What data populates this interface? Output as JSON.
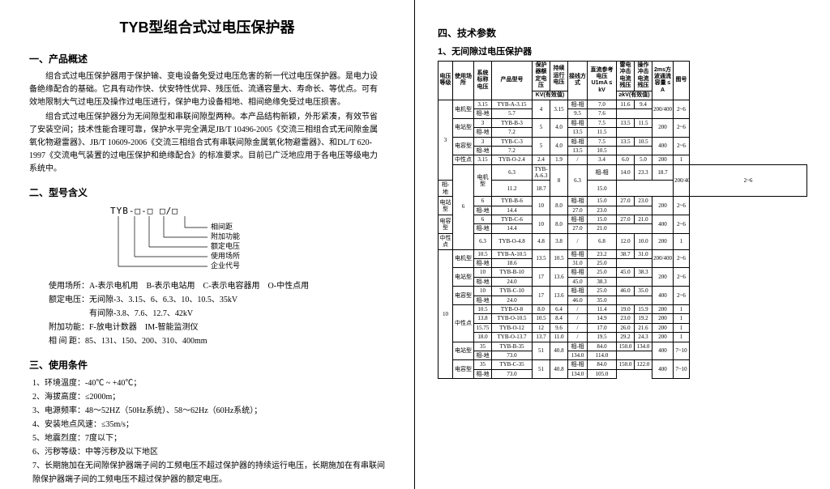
{
  "title": "TYB型组合式过电压保护器",
  "sections": {
    "s1": {
      "heading": "一、产品概述",
      "p1": "组合式过电压保护器用于保护输、变电设备免受过电压危害的新一代过电压保护器。是电力设备绝缘配合的基础。它具有动作快、伏安特性优异、残压低、流通容量大、寿命长、等优点。可有效地限制大气过电压及操作过电压进行，保护电力设备相地、相间绝缘免受过电压损害。",
      "p2": "组合式过电压保护器分为无间隙型和串联间隙型两种。本产品结构新颖，外形紧凑，有效节省了安装空间；技术性能合理可靠，保护水平完全满足JB/T 10496-2005《交流三相组合式无间隙金属氧化物避雷器》、JB/T 10609-2006《交流三相组合式有串联间隙金属氧化物避雷器》、和DL/T 620-1997《交流电气装置的过电压保护和绝缘配合》的标准要求。目前已广泛地应用于各电压等级电力系统中。"
    },
    "s2": {
      "heading": "二、型号含义",
      "model_code": "TYB-□-□ □/□",
      "labels": [
        "相间距",
        "附加功能",
        "额定电压",
        "使用场所",
        "企业代号"
      ],
      "usage": [
        "使用场所：A-表示电机用　B-表示电站用　C-表示电容器用　O-中性点用",
        "额定电压：无间隙-3、3.15、6、6.3、10、10.5、35kV",
        "　　　　　有间隙-3.8、7.6、12.7、42kV",
        "附加功能：F-放电计数器　IM-智能监测仪",
        "相 间 距：85、131、150、200、310、400mm"
      ]
    },
    "s3": {
      "heading": "三、使用条件",
      "items": [
        "1、环境温度：-40℃ ~ +40℃；",
        "2、海拔高度：≤2000m；",
        "3、电源频率：48～52HZ（50Hz系统）、58～62Hz（60Hz系统）；",
        "4、安装地点风速：≤35m/s；",
        "5、地震烈度：7度以下；",
        "6、污秽等级：中等污秽及以下地区",
        "7、长期施加在无间隙保护器端子间的工频电压不超过保护器的持续运行电压，长期施加在有串联间隙保护器端子间的工频电压不超过保护器的额定电压。"
      ]
    },
    "s4": {
      "heading": "四、技术参数",
      "sub": "1、无间隙过电压保护器"
    }
  },
  "table": {
    "headers": {
      "h1": "电压等级",
      "h2": "使用场所",
      "h3": "系统标称电压",
      "h4": "产品型号",
      "h5": "保护器额定电压",
      "h6": "持续运行电压",
      "h7": "接线方式",
      "h8": "直流参考电压U1mA ≤ kV",
      "h9": "雷电冲击电流残压",
      "h10": "操作冲击电流残压",
      "h11": "2ms方波通流容量 ≤ A",
      "h12": "图号",
      "sub_kv": "KV(有效值)",
      "sub_gkv": "≥kV(有效值)"
    },
    "rows": [
      {
        "lvl": "3",
        "lvlspan": 8,
        "use": "电机型",
        "usespan": 2,
        "sys": "3.15",
        "model": "TYB-A-3.15",
        "prot": "4",
        "protspan": 2,
        "cont": "3.15",
        "contspan": 2,
        "wire": "相-相",
        "dc": "7.0",
        "limp": "11.6",
        "oimp": "9.4",
        "cap": "200/400",
        "capspan": 2,
        "fig": "2~6",
        "figspan": 2
      },
      {
        "wire": "相-地",
        "dc": "5.7",
        "limp": "9.5",
        "oimp": "7.6"
      },
      {
        "use": "电站型",
        "usespan": 2,
        "sys": "3",
        "model": "TYB-B-3",
        "prot": "5",
        "protspan": 2,
        "cont": "4.0",
        "contspan": 2,
        "wire": "相-相",
        "dc": "7.5",
        "limp": "13.5",
        "oimp": "11.5",
        "cap": "200",
        "capspan": 2,
        "fig": "2~6",
        "figspan": 2
      },
      {
        "wire": "相-地",
        "dc": "7.2",
        "limp": "13.5",
        "oimp": "11.5"
      },
      {
        "use": "电容型",
        "usespan": 2,
        "sys": "3",
        "model": "TYB-C-3",
        "prot": "5",
        "protspan": 2,
        "cont": "4.0",
        "contspan": 2,
        "wire": "相-相",
        "dc": "7.5",
        "limp": "13.5",
        "oimp": "10.5",
        "cap": "400",
        "capspan": 2,
        "fig": "2~6",
        "figspan": 2
      },
      {
        "wire": "相-地",
        "dc": "7.2",
        "limp": "13.5",
        "oimp": "10.5"
      },
      {
        "use": "中性点",
        "usespan": 1,
        "sys": "3.15",
        "model": "TYB-O-2.4",
        "prot": "2.4",
        "cont": "1.9",
        "wire": "/",
        "dc": "3.4",
        "limp": "6.0",
        "oimp": "5.0",
        "cap": "200",
        "fig": "1"
      },
      {
        "lvl": "6",
        "lvlspan": 7,
        "use": "电机型",
        "usespan": 2,
        "sys": "6.3",
        "model": "TYB-A-6.3",
        "prot": "8",
        "protspan": 2,
        "cont": "6.3",
        "contspan": 2,
        "wire": "相-相",
        "dc": "14.0",
        "limp": "23.3",
        "oimp": "18.7",
        "cap": "200/400",
        "capspan": 2,
        "fig": "2~6",
        "figspan": 2
      },
      {
        "wire": "相-地",
        "dc": "11.2",
        "limp": "18.7",
        "oimp": "15.0"
      },
      {
        "use": "电站型",
        "usespan": 2,
        "sys": "6",
        "model": "TYB-B-6",
        "prot": "10",
        "protspan": 2,
        "cont": "8.0",
        "contspan": 2,
        "wire": "相-相",
        "dc": "15.0",
        "limp": "27.0",
        "oimp": "23.0",
        "cap": "200",
        "capspan": 2,
        "fig": "2~6",
        "figspan": 2
      },
      {
        "wire": "相-地",
        "dc": "14.4",
        "limp": "27.0",
        "oimp": "23.0"
      },
      {
        "use": "电容型",
        "usespan": 2,
        "sys": "6",
        "model": "TYB-C-6",
        "prot": "10",
        "protspan": 2,
        "cont": "8.0",
        "contspan": 2,
        "wire": "相-相",
        "dc": "15.0",
        "limp": "27.0",
        "oimp": "21.0",
        "cap": "400",
        "capspan": 2,
        "fig": "2~6",
        "figspan": 2
      },
      {
        "wire": "相-地",
        "dc": "14.4",
        "limp": "27.0",
        "oimp": "21.0"
      },
      {
        "use": "中性点",
        "usespan": 1,
        "sys": "6.3",
        "model": "TYB-O-4.8",
        "prot": "4.8",
        "cont": "3.8",
        "wire": "/",
        "dc": "6.8",
        "limp": "12.0",
        "oimp": "10.0",
        "cap": "200",
        "fig": "1"
      },
      {
        "lvl": "10",
        "lvlspan": 14,
        "use": "电机型",
        "usespan": 2,
        "sys": "10.5",
        "model": "TYB-A-10.5",
        "prot": "13.5",
        "protspan": 2,
        "cont": "10.5",
        "contspan": 2,
        "wire": "相-相",
        "dc": "23.2",
        "limp": "38.7",
        "oimp": "31.0",
        "cap": "200/400",
        "capspan": 2,
        "fig": "2~6",
        "figspan": 2
      },
      {
        "wire": "相-地",
        "dc": "18.6",
        "limp": "31.0",
        "oimp": "25.0"
      },
      {
        "use": "电站型",
        "usespan": 2,
        "sys": "10",
        "model": "TYB-B-10",
        "prot": "17",
        "protspan": 2,
        "cont": "13.6",
        "contspan": 2,
        "wire": "相-相",
        "dc": "25.0",
        "limp": "45.0",
        "oimp": "38.3",
        "cap": "200",
        "capspan": 2,
        "fig": "2~6",
        "figspan": 2
      },
      {
        "wire": "相-地",
        "dc": "24.0",
        "limp": "45.0",
        "oimp": "38.3"
      },
      {
        "use": "电容型",
        "usespan": 2,
        "sys": "10",
        "model": "TYB-C-10",
        "prot": "17",
        "protspan": 2,
        "cont": "13.6",
        "contspan": 2,
        "wire": "相-相",
        "dc": "25.0",
        "limp": "46.0",
        "oimp": "35.0",
        "cap": "400",
        "capspan": 2,
        "fig": "2~6",
        "figspan": 2
      },
      {
        "wire": "相-地",
        "dc": "24.0",
        "limp": "46.0",
        "oimp": "35.0"
      },
      {
        "use": "中性点",
        "usespan": 4,
        "sys": "10.5",
        "model": "TYB-O-8",
        "prot": "8.0",
        "cont": "6.4",
        "wire": "/",
        "dc": "11.4",
        "limp": "19.0",
        "oimp": "15.9",
        "cap": "200",
        "fig": "1"
      },
      {
        "sys": "13.8",
        "model": "TYB-O-10.5",
        "prot": "10.5",
        "cont": "8.4",
        "wire": "/",
        "dc": "14.9",
        "limp": "23.0",
        "oimp": "19.2",
        "cap": "200",
        "fig": "1"
      },
      {
        "sys": "15.75",
        "model": "TYB-O-12",
        "prot": "12",
        "cont": "9.6",
        "wire": "/",
        "dc": "17.0",
        "limp": "26.0",
        "oimp": "21.6",
        "cap": "200",
        "fig": "1"
      },
      {
        "sys": "18.0",
        "model": "TYB-O-13.7",
        "prot": "13.7",
        "cont": "11.0",
        "wire": "/",
        "dc": "19.5",
        "limp": "29.2",
        "oimp": "24.3",
        "cap": "200",
        "fig": "1"
      },
      {
        "use": "电站型",
        "usespan": 2,
        "sys": "35",
        "model": "TYB-B-35",
        "prot": "51",
        "protspan": 2,
        "cont": "40.8",
        "contspan": 2,
        "wire": "相-相",
        "dc": "84.0",
        "limp": "150.0",
        "oimp": "134.0",
        "cap": "400",
        "capspan": 2,
        "fig": "7~10",
        "figspan": 2
      },
      {
        "wire": "相-地",
        "dc": "73.0",
        "limp": "134.0",
        "oimp": "114.0"
      },
      {
        "use": "电容型",
        "usespan": 2,
        "sys": "35",
        "model": "TYB-C-35",
        "prot": "51",
        "protspan": 2,
        "cont": "40.8",
        "contspan": 2,
        "wire": "相-相",
        "dc": "84.0",
        "limp": "150.0",
        "oimp": "122.0",
        "cap": "400",
        "capspan": 2,
        "fig": "7~10",
        "figspan": 2
      },
      {
        "wire": "相-地",
        "dc": "73.0",
        "limp": "134.0",
        "oimp": "105.0"
      }
    ]
  }
}
